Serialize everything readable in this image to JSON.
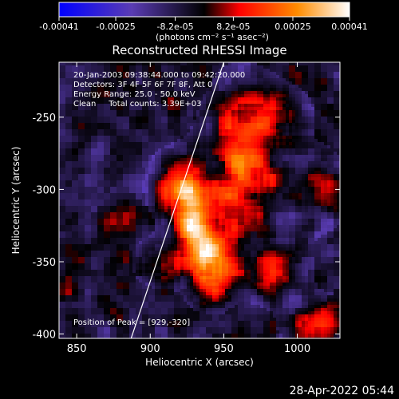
{
  "chart_data": {
    "type": "heatmap",
    "title": "Reconstructed RHESSI Image",
    "xlabel": "Heliocentric X (arcsec)",
    "ylabel": "Heliocentric Y (arcsec)",
    "xlim": [
      838,
      1029
    ],
    "ylim": [
      -403,
      -212
    ],
    "x_ticks": [
      850,
      900,
      950,
      1000
    ],
    "y_ticks": [
      -250,
      -300,
      -350,
      -400
    ],
    "colorbar": {
      "ticks": [
        -0.00041,
        -0.00025,
        -8.2e-05,
        8.2e-05,
        0.00025,
        0.00041
      ],
      "tick_labels": [
        "-0.00041",
        "-0.00025",
        "-8.2e-05",
        "8.2e-05",
        "0.00025",
        "0.00041"
      ],
      "range": [
        -0.00041,
        0.00041
      ],
      "unit_label": "(photons cm⁻² s⁻¹ asec⁻²)"
    },
    "annotations": [
      "20-Jan-2003 09:38:44.000 to 09:42:20.000",
      "Detectors: 3F 4F 5F 6F 7F 8F, Att 0",
      "Energy Range: 25.0 - 50.0 keV",
      "Clean     Total counts: 3.39E+03"
    ],
    "peak_label": "Position of Peak = [929,-320]",
    "peak": [
      929,
      -320
    ],
    "limb_line": [
      [
        887,
        -403
      ],
      [
        950,
        -212
      ]
    ],
    "sources": [
      {
        "x": 929,
        "y": -320,
        "amp": 1.0,
        "sx": 9,
        "sy": 22
      },
      {
        "x": 942,
        "y": -352,
        "amp": 0.85,
        "sx": 10,
        "sy": 16
      },
      {
        "x": 962,
        "y": -282,
        "amp": 0.75,
        "sx": 16,
        "sy": 34
      },
      {
        "x": 915,
        "y": -298,
        "amp": 0.55,
        "sx": 10,
        "sy": 14
      },
      {
        "x": 985,
        "y": -355,
        "amp": 0.5,
        "sx": 14,
        "sy": 14
      },
      {
        "x": 1015,
        "y": -395,
        "amp": 0.6,
        "sx": 14,
        "sy": 12
      },
      {
        "x": 985,
        "y": -248,
        "amp": 0.45,
        "sx": 14,
        "sy": 12
      },
      {
        "x": 905,
        "y": -350,
        "amp": 0.4,
        "sx": 10,
        "sy": 10
      },
      {
        "x": 1015,
        "y": -300,
        "amp": 0.35,
        "sx": 12,
        "sy": 18
      }
    ]
  },
  "footer": {
    "timestamp": "28-Apr-2022 05:44"
  }
}
